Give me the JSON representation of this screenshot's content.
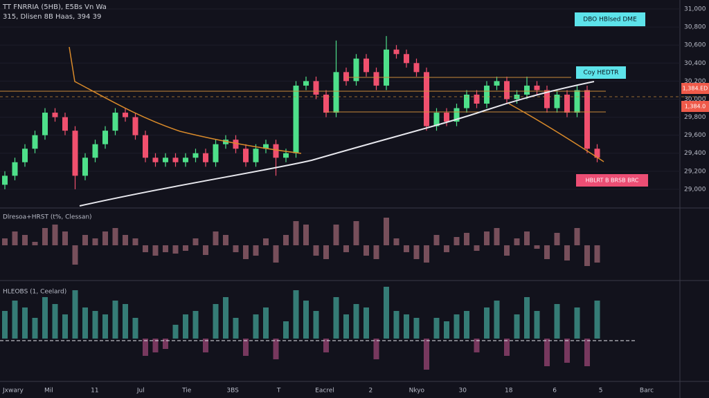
{
  "header": {
    "title": "TT FNRRIA (5HB), E5Bs Vn Wa",
    "subtitle": "315, Dlisen 8B Haas, 394 39"
  },
  "chart_data": [
    {
      "type": "candlestick",
      "up_color": "#4ee08a",
      "down_color": "#f0506e",
      "ylim": [
        28800,
        31100
      ],
      "yticks": [
        {
          "value": 29000,
          "label": "29,000"
        },
        {
          "value": 29200,
          "label": "29,200"
        },
        {
          "value": 29400,
          "label": "29,400"
        },
        {
          "value": 29600,
          "label": "29,600"
        },
        {
          "value": 29800,
          "label": "29,800"
        },
        {
          "value": 30000,
          "label": "30,000"
        },
        {
          "value": 30200,
          "label": "30,200"
        },
        {
          "value": 30400,
          "label": "30,400"
        },
        {
          "value": 30600,
          "label": "30,600"
        },
        {
          "value": 30800,
          "label": "30,800"
        },
        {
          "value": 31000,
          "label": "31,000"
        }
      ],
      "annotations": [
        "DBO HBlsed DME",
        "Coy HEDTR",
        "HBLRT B BRSB BRC",
        "1,384.ED",
        "1,384.0"
      ],
      "xlabels": [
        "Jxwary",
        "Mil",
        "11",
        "Jul",
        "Tie",
        "3BS",
        "T",
        "Eacrel",
        "2",
        "Nkyo",
        "30",
        "18",
        "6",
        "5",
        "Barc"
      ],
      "open": [
        29050,
        29150,
        29300,
        29450,
        29600,
        29850,
        29800,
        29650,
        29150,
        29350,
        29500,
        29650,
        29850,
        29800,
        29600,
        29350,
        29300,
        29350,
        29300,
        29350,
        29400,
        29300,
        29500,
        29550,
        29450,
        29300,
        29450,
        29500,
        29350,
        29400,
        30150,
        30200,
        30050,
        29850,
        30300,
        30200,
        30450,
        30300,
        30150,
        30550,
        30500,
        30400,
        30300,
        29700,
        29850,
        29750,
        29900,
        30050,
        29950,
        30150,
        30200,
        30000,
        30050,
        30150,
        30100,
        29900,
        30050,
        29850,
        30100,
        29450
      ],
      "high": [
        29200,
        29350,
        29500,
        29650,
        29900,
        29900,
        29850,
        29700,
        29400,
        29550,
        29700,
        29900,
        29900,
        29850,
        29650,
        29400,
        29400,
        29400,
        29400,
        29450,
        29450,
        29550,
        29600,
        29600,
        29500,
        29500,
        29550,
        29550,
        29450,
        30200,
        30250,
        30250,
        30100,
        30650,
        30350,
        30500,
        30500,
        30350,
        30700,
        30600,
        30550,
        30450,
        30350,
        29900,
        29900,
        29950,
        30100,
        30100,
        30200,
        30250,
        30250,
        30100,
        30250,
        30200,
        30150,
        30100,
        30100,
        30150,
        30150,
        29500
      ],
      "low": [
        29000,
        29100,
        29250,
        29400,
        29550,
        29750,
        29600,
        29000,
        29100,
        29300,
        29450,
        29600,
        29750,
        29550,
        29300,
        29250,
        29250,
        29250,
        29250,
        29300,
        29250,
        29250,
        29450,
        29400,
        29250,
        29250,
        29400,
        29150,
        29300,
        29350,
        30100,
        30000,
        29800,
        29800,
        30150,
        30150,
        30250,
        30100,
        30100,
        30450,
        30350,
        30250,
        29650,
        29650,
        29700,
        29700,
        29850,
        29900,
        29900,
        30100,
        29950,
        29950,
        30000,
        30050,
        29850,
        29850,
        29800,
        29800,
        29400,
        29300
      ],
      "close": [
        29150,
        29300,
        29450,
        29600,
        29850,
        29800,
        29650,
        29150,
        29350,
        29500,
        29650,
        29850,
        29800,
        29600,
        29350,
        29300,
        29350,
        29300,
        29350,
        29400,
        29300,
        29500,
        29550,
        29450,
        29300,
        29450,
        29500,
        29350,
        29400,
        30150,
        30200,
        30050,
        29850,
        30300,
        30200,
        30450,
        30300,
        30150,
        30550,
        30500,
        30400,
        30300,
        29700,
        29850,
        29750,
        29900,
        30050,
        29950,
        30150,
        30200,
        30000,
        30050,
        30150,
        30100,
        29900,
        30050,
        29850,
        30100,
        29450,
        29350
      ]
    },
    {
      "type": "bar",
      "title": "Dlresoa+HRST (t%, Clessan)",
      "color": "#8a5a66",
      "ylim": [
        -50,
        50
      ],
      "values": [
        10,
        20,
        15,
        5,
        25,
        30,
        20,
        -28,
        15,
        10,
        20,
        25,
        15,
        10,
        -10,
        -15,
        -10,
        -12,
        -8,
        10,
        -14,
        20,
        15,
        -10,
        -20,
        -15,
        10,
        -25,
        15,
        35,
        30,
        -15,
        -20,
        30,
        -10,
        35,
        -15,
        -20,
        40,
        10,
        -10,
        -20,
        -25,
        15,
        -10,
        12,
        18,
        -8,
        20,
        25,
        -15,
        10,
        20,
        -5,
        -20,
        18,
        -22,
        25,
        -30,
        -25
      ]
    },
    {
      "type": "bar",
      "title": "HLEOBS (1, Ceelard)",
      "up_color": "#3c8f86",
      "down_color": "#8a3f6a",
      "ylim": [
        -60,
        80
      ],
      "values": [
        40,
        55,
        45,
        30,
        60,
        50,
        35,
        70,
        45,
        40,
        35,
        55,
        50,
        30,
        -25,
        -20,
        -15,
        20,
        35,
        40,
        -20,
        50,
        60,
        30,
        -25,
        35,
        45,
        -30,
        25,
        70,
        55,
        40,
        -20,
        60,
        35,
        50,
        45,
        -30,
        75,
        40,
        35,
        30,
        -45,
        30,
        25,
        35,
        40,
        -20,
        45,
        55,
        -25,
        35,
        60,
        40,
        -40,
        50,
        -35,
        45,
        -40,
        55
      ]
    }
  ]
}
